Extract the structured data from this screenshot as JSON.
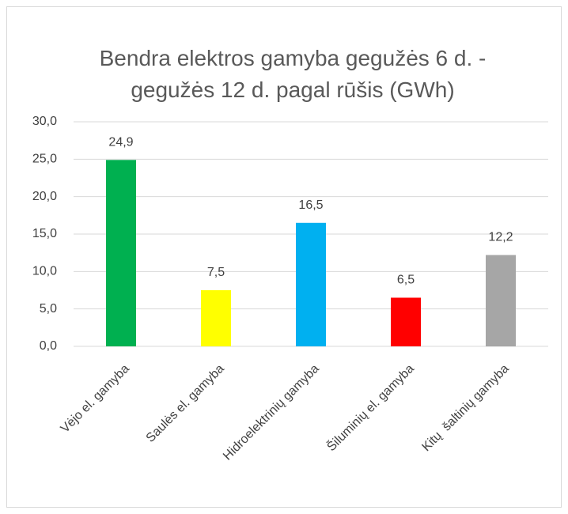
{
  "chart_data": {
    "type": "bar",
    "title": "Bendra elektros gamyba gegužės 6 d. - gegužės 12 d. pagal rūšis (GWh)",
    "categories": [
      "Vėjo el. gamyba",
      "Saulės el. gamyba",
      "Hidroelektrinių gamyba",
      "Šiluminių el. gamyba",
      "Kitų  šaltinių gamyba"
    ],
    "values": [
      24.9,
      7.5,
      16.5,
      6.5,
      12.2
    ],
    "value_labels": [
      "24,9",
      "7,5",
      "16,5",
      "6,5",
      "12,2"
    ],
    "colors": [
      "#00b050",
      "#ffff00",
      "#00b0f0",
      "#ff0000",
      "#a6a6a6"
    ],
    "ylim": [
      0,
      30
    ],
    "yticks": [
      {
        "value": 0,
        "label": "0,0"
      },
      {
        "value": 5,
        "label": "5,0"
      },
      {
        "value": 10,
        "label": "10,0"
      },
      {
        "value": 15,
        "label": "15,0"
      },
      {
        "value": 20,
        "label": "20,0"
      },
      {
        "value": 25,
        "label": "25,0"
      },
      {
        "value": 30,
        "label": "30,0"
      }
    ],
    "grid": true
  }
}
